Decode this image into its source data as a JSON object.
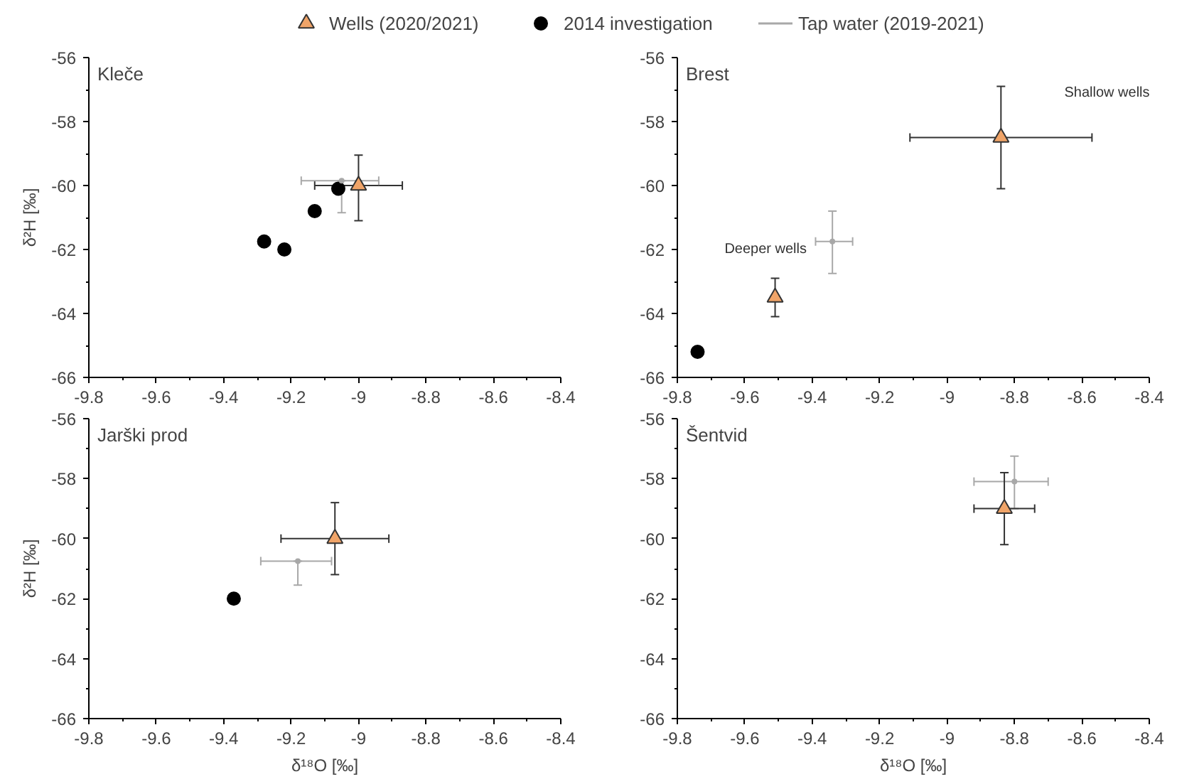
{
  "chart_data": [
    {
      "type": "scatter",
      "title": "Kleče",
      "ylabel": "δ²H [‰]",
      "xlim": [
        -9.8,
        -8.4
      ],
      "ylim": [
        -66,
        -56
      ],
      "xticks": [
        -9.8,
        -9.6,
        -9.4,
        -9.2,
        -9,
        -8.8,
        -8.6,
        -8.4
      ],
      "yticks": [
        -66,
        -64,
        -62,
        -60,
        -58,
        -56
      ],
      "grid": false,
      "legend": "top",
      "series": [
        {
          "name": "Wells (2020/2021)",
          "color": "#f0a468",
          "marker": "triangle",
          "x": [
            -9.0
          ],
          "values": [
            -60.0
          ],
          "xerrors": [
            [
              -9.13,
              -8.87
            ]
          ],
          "errors": [
            [
              -61.1,
              -59.05
            ]
          ]
        },
        {
          "name": "2014 investigation",
          "color": "#000000",
          "marker": "circle",
          "x": [
            -9.28,
            -9.22,
            -9.13,
            -9.06
          ],
          "values": [
            -61.75,
            -62.0,
            -60.8,
            -60.1
          ]
        },
        {
          "name": "Tap water (2019-2021)",
          "color": "#a8a8a8",
          "marker": "none",
          "x": [
            -9.05
          ],
          "values": [
            -59.85
          ],
          "xerrors": [
            [
              -9.17,
              -8.94
            ]
          ],
          "errors": [
            [
              -60.85,
              -59.85
            ]
          ]
        }
      ]
    },
    {
      "type": "scatter",
      "title": "Brest",
      "xlim": [
        -9.8,
        -8.4
      ],
      "ylim": [
        -66,
        -56
      ],
      "xticks": [
        -9.8,
        -9.6,
        -9.4,
        -9.2,
        -9,
        -8.8,
        -8.6,
        -8.4
      ],
      "yticks": [
        -66,
        -64,
        -62,
        -60,
        -58,
        -56
      ],
      "grid": false,
      "annotations": [
        "Shallow wells",
        "Deeper wells"
      ],
      "series": [
        {
          "color": "#f0a468",
          "marker": "triangle",
          "x": [
            -9.51,
            -8.84
          ],
          "values": [
            -63.5,
            -58.5
          ],
          "xerrors": [
            null,
            [
              -9.11,
              -8.57
            ]
          ],
          "errors": [
            [
              -64.1,
              -62.9
            ],
            [
              -60.1,
              -56.9
            ]
          ]
        },
        {
          "color": "#000000",
          "marker": "circle",
          "x": [
            -9.74
          ],
          "values": [
            -65.2
          ]
        },
        {
          "color": "#a8a8a8",
          "marker": "none",
          "x": [
            -9.34
          ],
          "values": [
            -61.75
          ],
          "xerrors": [
            [
              -9.39,
              -9.28
            ]
          ],
          "errors": [
            [
              -62.75,
              -60.8
            ]
          ]
        }
      ]
    },
    {
      "type": "scatter",
      "title": "Jarški prod",
      "xlabel": "δ¹⁸O [‰]",
      "ylabel": "δ²H [‰]",
      "xlim": [
        -9.8,
        -8.4
      ],
      "ylim": [
        -66,
        -56
      ],
      "xticks": [
        -9.8,
        -9.6,
        -9.4,
        -9.2,
        -9,
        -8.8,
        -8.6,
        -8.4
      ],
      "yticks": [
        -66,
        -64,
        -62,
        -60,
        -58,
        -56
      ],
      "grid": false,
      "series": [
        {
          "color": "#f0a468",
          "marker": "triangle",
          "x": [
            -9.07
          ],
          "values": [
            -60.0
          ],
          "xerrors": [
            [
              -9.23,
              -8.91
            ]
          ],
          "errors": [
            [
              -61.2,
              -58.8
            ]
          ]
        },
        {
          "color": "#000000",
          "marker": "circle",
          "x": [
            -9.37
          ],
          "values": [
            -62.0
          ]
        },
        {
          "color": "#a8a8a8",
          "marker": "none",
          "x": [
            -9.18
          ],
          "values": [
            -60.75
          ],
          "xerrors": [
            [
              -9.29,
              -9.08
            ]
          ],
          "errors": [
            [
              -61.55,
              -60.75
            ]
          ]
        }
      ]
    },
    {
      "type": "scatter",
      "title": "Šentvid",
      "xlabel": "δ¹⁸O [‰]",
      "xlim": [
        -9.8,
        -8.4
      ],
      "ylim": [
        -66,
        -56
      ],
      "xticks": [
        -9.8,
        -9.6,
        -9.4,
        -9.2,
        -9,
        -8.8,
        -8.6,
        -8.4
      ],
      "yticks": [
        -66,
        -64,
        -62,
        -60,
        -58,
        -56
      ],
      "grid": false,
      "series": [
        {
          "color": "#a8a8a8",
          "marker": "none",
          "x": [
            -8.8
          ],
          "values": [
            -58.1
          ],
          "xerrors": [
            [
              -8.92,
              -8.7
            ]
          ],
          "errors": [
            [
              -59.0,
              -57.25
            ]
          ]
        },
        {
          "color": "#f0a468",
          "marker": "triangle",
          "x": [
            -8.83
          ],
          "values": [
            -59.0
          ],
          "xerrors": [
            [
              -8.92,
              -8.74
            ]
          ],
          "errors": [
            [
              -60.2,
              -57.8
            ]
          ]
        }
      ]
    }
  ]
}
